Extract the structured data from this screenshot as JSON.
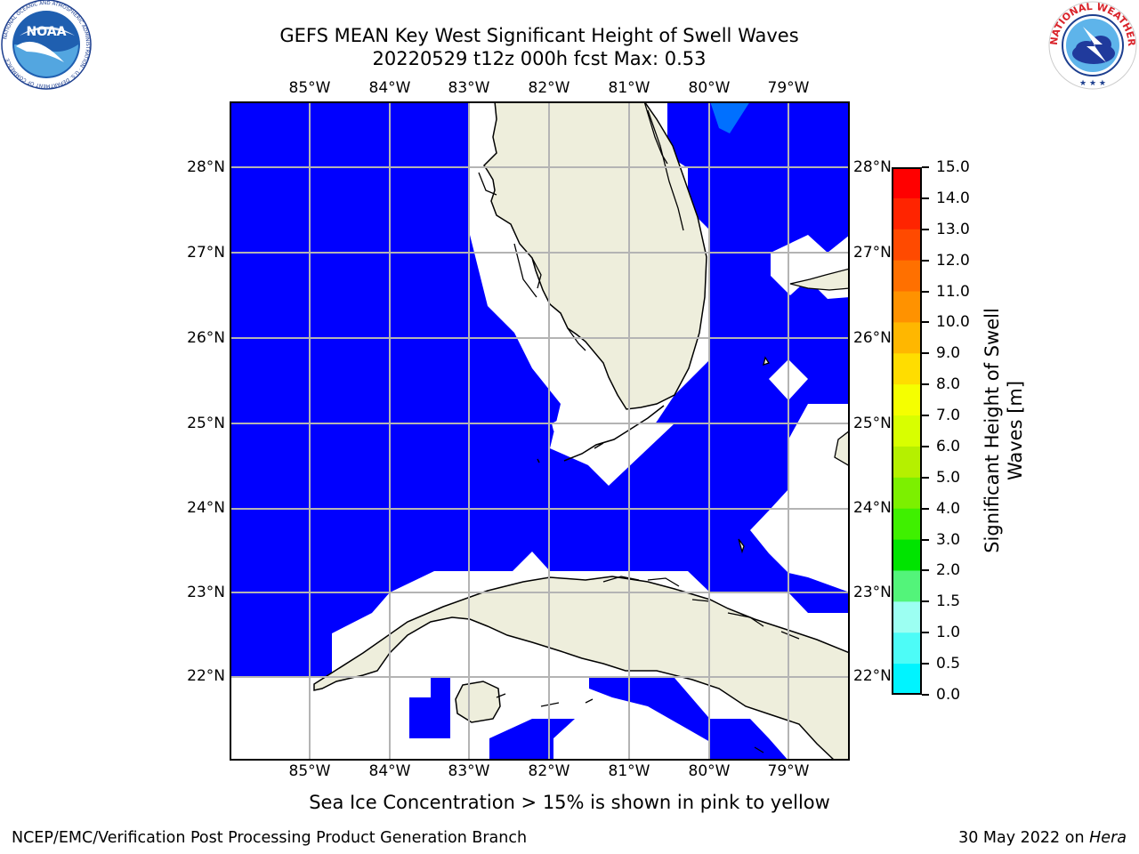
{
  "title_line1": "GEFS MEAN Key West Significant Height of Swell Waves",
  "title_line2": "20220529 t12z 000h fcst   Max: 0.53",
  "lon_ticks": [
    "85°W",
    "84°W",
    "83°W",
    "82°W",
    "81°W",
    "80°W",
    "79°W"
  ],
  "lat_ticks": [
    "28°N",
    "27°N",
    "26°N",
    "25°N",
    "24°N",
    "23°N",
    "22°N"
  ],
  "colorbar": {
    "label_line1": "Significant Height of Swell",
    "label_line2": "Waves [m]",
    "ticks": [
      "15.0",
      "14.0",
      "13.0",
      "12.0",
      "11.0",
      "10.0",
      "9.0",
      "8.0",
      "7.0",
      "6.0",
      "5.0",
      "4.0",
      "3.0",
      "2.0",
      "1.5",
      "1.0",
      "0.5",
      "0.0"
    ],
    "colors": [
      "#ff0000",
      "#ff2400",
      "#ff4a00",
      "#ff7000",
      "#ff9200",
      "#ffb700",
      "#ffdd00",
      "#f5ff00",
      "#d8ff00",
      "#b5f000",
      "#7cf000",
      "#3ff000",
      "#00e400",
      "#53f47a",
      "#9cfff2",
      "#4dfcf7",
      "#00f4ff",
      "#0070ff",
      "#0000ff"
    ]
  },
  "note": "Sea Ice Concentration > 15% is shown in pink to yellow",
  "footer_left": "NCEP/EMC/Verification Post Processing Product Generation Branch",
  "footer_date": "30 May 2022 on",
  "footer_host": "Hera",
  "logo_left": "NOAA",
  "logo_left_ring": "NATIONAL OCEANIC AND ATMOSPHERIC ADMINISTRATION · U.S. DEPARTMENT OF COMMERCE",
  "logo_right_ring": "NATIONAL WEATHER SERVICE",
  "colors": {
    "ocean": "#0000ff",
    "land": "#eeeedc",
    "grid": "#b4b4b4",
    "swell_patch": "#0070ff"
  }
}
